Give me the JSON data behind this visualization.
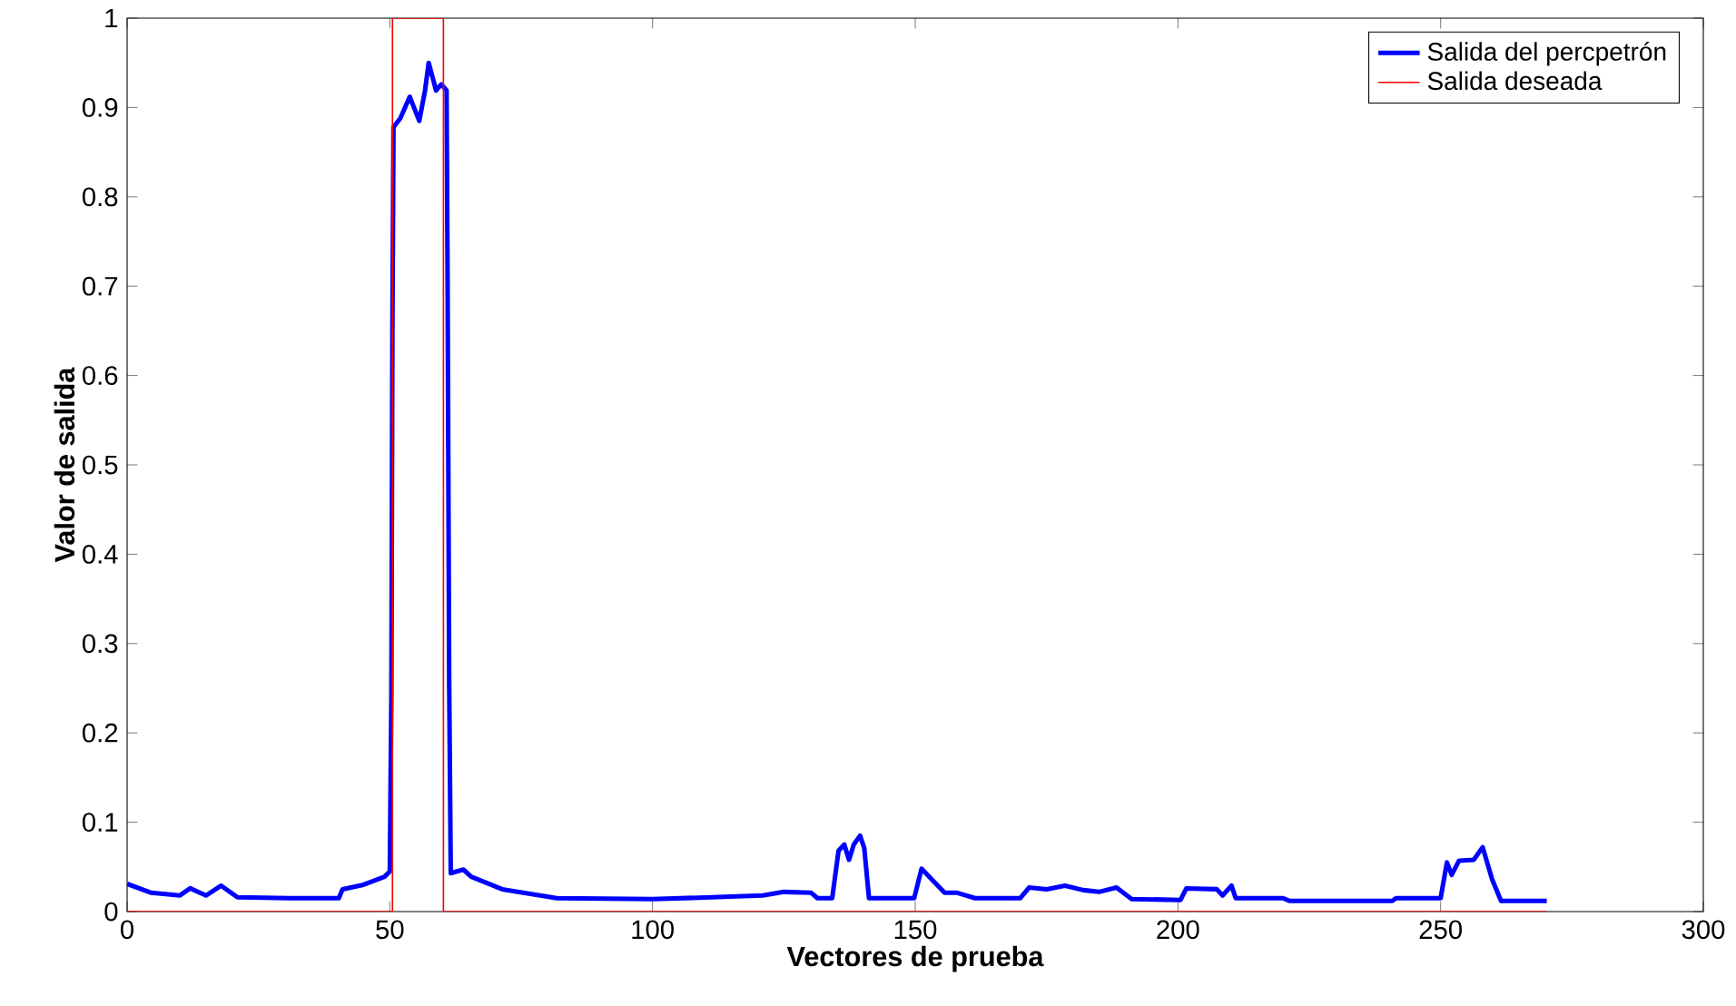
{
  "chart_data": {
    "type": "line",
    "xlabel": "Vectores de prueba",
    "ylabel": "Valor de salida",
    "xlim": [
      0,
      300
    ],
    "ylim": [
      0,
      1
    ],
    "xticks": [
      0,
      50,
      100,
      150,
      200,
      250,
      300
    ],
    "yticks": [
      0,
      0.1,
      0.2,
      0.3,
      0.4,
      0.5,
      0.6,
      0.7,
      0.8,
      0.9,
      1
    ],
    "legend": "top right",
    "grid": false,
    "marker": "none",
    "line_style": "solid",
    "series": [
      {
        "name": "Salida del percpetrón",
        "color": "#0000ff",
        "x": [
          0,
          4.6,
          10,
          12,
          15,
          17.9,
          21,
          31,
          40.3,
          41,
          45,
          49,
          50,
          50.3,
          50.5,
          50.7,
          52,
          53.8,
          55.6,
          56.7,
          57.4,
          58.8,
          59.8,
          60.8,
          61,
          61.3,
          61.6,
          64,
          65.5,
          71.4,
          81.8,
          100,
          111.2,
          121,
          125,
          130.2,
          131.4,
          134.2,
          135.4,
          136.5,
          137.4,
          138.3,
          139.5,
          140.3,
          141.2,
          149.8,
          151.2,
          153.3,
          155.6,
          158,
          161.4,
          170,
          171.7,
          175,
          178.5,
          182,
          185,
          188.3,
          191.2,
          200.5,
          201.6,
          207.4,
          208.5,
          210.2,
          211,
          220,
          221.2,
          240.8,
          241.5,
          250,
          251.2,
          252.1,
          253.5,
          256.3,
          258,
          259.8,
          261.5,
          270.2
        ],
        "values": [
          0.031,
          0.021,
          0.018,
          0.026,
          0.018,
          0.029,
          0.016,
          0.015,
          0.015,
          0.025,
          0.03,
          0.039,
          0.045,
          0.245,
          0.661,
          0.878,
          0.888,
          0.912,
          0.885,
          0.919,
          0.95,
          0.919,
          0.926,
          0.919,
          0.7,
          0.255,
          0.043,
          0.047,
          0.039,
          0.025,
          0.015,
          0.014,
          0.016,
          0.018,
          0.022,
          0.021,
          0.015,
          0.015,
          0.068,
          0.075,
          0.058,
          0.075,
          0.085,
          0.071,
          0.015,
          0.015,
          0.048,
          0.035,
          0.021,
          0.021,
          0.015,
          0.015,
          0.027,
          0.025,
          0.029,
          0.024,
          0.022,
          0.027,
          0.014,
          0.013,
          0.026,
          0.025,
          0.018,
          0.029,
          0.015,
          0.015,
          0.012,
          0.012,
          0.015,
          0.015,
          0.055,
          0.041,
          0.057,
          0.058,
          0.072,
          0.036,
          0.012,
          0.012
        ]
      },
      {
        "name": "Salida deseada",
        "color": "#ff0000",
        "x": [
          0,
          50.5,
          50.5,
          60.2,
          60.2,
          270.2
        ],
        "values": [
          0,
          0,
          1,
          1,
          0,
          0
        ]
      }
    ]
  }
}
